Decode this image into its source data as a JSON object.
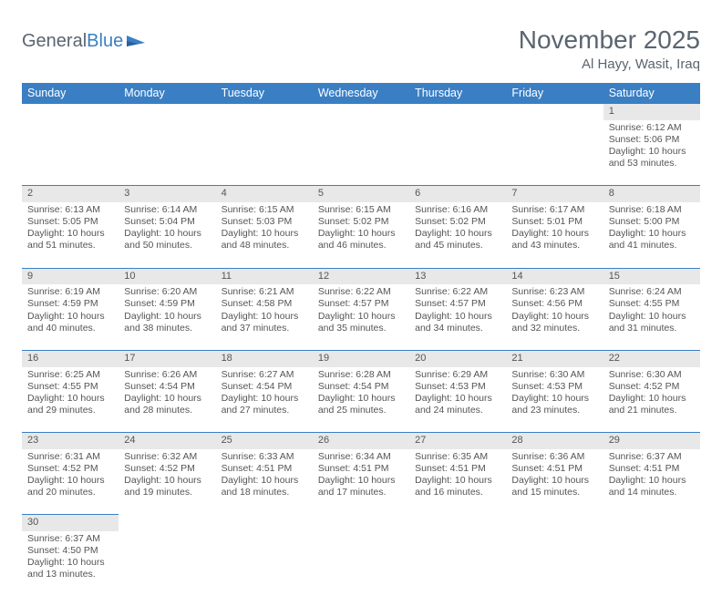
{
  "logo": {
    "text1": "General",
    "text2": "Blue"
  },
  "title": "November 2025",
  "location": "Al Hayy, Wasit, Iraq",
  "weekdays": [
    "Sunday",
    "Monday",
    "Tuesday",
    "Wednesday",
    "Thursday",
    "Friday",
    "Saturday"
  ],
  "colors": {
    "header_bg": "#3a7fc4",
    "header_fg": "#ffffff",
    "daynum_bg": "#e8e8e8",
    "row_border": "#3a7fc4",
    "text": "#555555",
    "title_color": "#5a6570"
  },
  "first_weekday_index": 6,
  "days": [
    {
      "n": 1,
      "sunrise": "6:12 AM",
      "sunset": "5:06 PM",
      "dl": "10 hours and 53 minutes."
    },
    {
      "n": 2,
      "sunrise": "6:13 AM",
      "sunset": "5:05 PM",
      "dl": "10 hours and 51 minutes."
    },
    {
      "n": 3,
      "sunrise": "6:14 AM",
      "sunset": "5:04 PM",
      "dl": "10 hours and 50 minutes."
    },
    {
      "n": 4,
      "sunrise": "6:15 AM",
      "sunset": "5:03 PM",
      "dl": "10 hours and 48 minutes."
    },
    {
      "n": 5,
      "sunrise": "6:15 AM",
      "sunset": "5:02 PM",
      "dl": "10 hours and 46 minutes."
    },
    {
      "n": 6,
      "sunrise": "6:16 AM",
      "sunset": "5:02 PM",
      "dl": "10 hours and 45 minutes."
    },
    {
      "n": 7,
      "sunrise": "6:17 AM",
      "sunset": "5:01 PM",
      "dl": "10 hours and 43 minutes."
    },
    {
      "n": 8,
      "sunrise": "6:18 AM",
      "sunset": "5:00 PM",
      "dl": "10 hours and 41 minutes."
    },
    {
      "n": 9,
      "sunrise": "6:19 AM",
      "sunset": "4:59 PM",
      "dl": "10 hours and 40 minutes."
    },
    {
      "n": 10,
      "sunrise": "6:20 AM",
      "sunset": "4:59 PM",
      "dl": "10 hours and 38 minutes."
    },
    {
      "n": 11,
      "sunrise": "6:21 AM",
      "sunset": "4:58 PM",
      "dl": "10 hours and 37 minutes."
    },
    {
      "n": 12,
      "sunrise": "6:22 AM",
      "sunset": "4:57 PM",
      "dl": "10 hours and 35 minutes."
    },
    {
      "n": 13,
      "sunrise": "6:22 AM",
      "sunset": "4:57 PM",
      "dl": "10 hours and 34 minutes."
    },
    {
      "n": 14,
      "sunrise": "6:23 AM",
      "sunset": "4:56 PM",
      "dl": "10 hours and 32 minutes."
    },
    {
      "n": 15,
      "sunrise": "6:24 AM",
      "sunset": "4:55 PM",
      "dl": "10 hours and 31 minutes."
    },
    {
      "n": 16,
      "sunrise": "6:25 AM",
      "sunset": "4:55 PM",
      "dl": "10 hours and 29 minutes."
    },
    {
      "n": 17,
      "sunrise": "6:26 AM",
      "sunset": "4:54 PM",
      "dl": "10 hours and 28 minutes."
    },
    {
      "n": 18,
      "sunrise": "6:27 AM",
      "sunset": "4:54 PM",
      "dl": "10 hours and 27 minutes."
    },
    {
      "n": 19,
      "sunrise": "6:28 AM",
      "sunset": "4:54 PM",
      "dl": "10 hours and 25 minutes."
    },
    {
      "n": 20,
      "sunrise": "6:29 AM",
      "sunset": "4:53 PM",
      "dl": "10 hours and 24 minutes."
    },
    {
      "n": 21,
      "sunrise": "6:30 AM",
      "sunset": "4:53 PM",
      "dl": "10 hours and 23 minutes."
    },
    {
      "n": 22,
      "sunrise": "6:30 AM",
      "sunset": "4:52 PM",
      "dl": "10 hours and 21 minutes."
    },
    {
      "n": 23,
      "sunrise": "6:31 AM",
      "sunset": "4:52 PM",
      "dl": "10 hours and 20 minutes."
    },
    {
      "n": 24,
      "sunrise": "6:32 AM",
      "sunset": "4:52 PM",
      "dl": "10 hours and 19 minutes."
    },
    {
      "n": 25,
      "sunrise": "6:33 AM",
      "sunset": "4:51 PM",
      "dl": "10 hours and 18 minutes."
    },
    {
      "n": 26,
      "sunrise": "6:34 AM",
      "sunset": "4:51 PM",
      "dl": "10 hours and 17 minutes."
    },
    {
      "n": 27,
      "sunrise": "6:35 AM",
      "sunset": "4:51 PM",
      "dl": "10 hours and 16 minutes."
    },
    {
      "n": 28,
      "sunrise": "6:36 AM",
      "sunset": "4:51 PM",
      "dl": "10 hours and 15 minutes."
    },
    {
      "n": 29,
      "sunrise": "6:37 AM",
      "sunset": "4:51 PM",
      "dl": "10 hours and 14 minutes."
    },
    {
      "n": 30,
      "sunrise": "6:37 AM",
      "sunset": "4:50 PM",
      "dl": "10 hours and 13 minutes."
    }
  ],
  "labels": {
    "sunrise": "Sunrise:",
    "sunset": "Sunset:",
    "daylight": "Daylight:"
  }
}
